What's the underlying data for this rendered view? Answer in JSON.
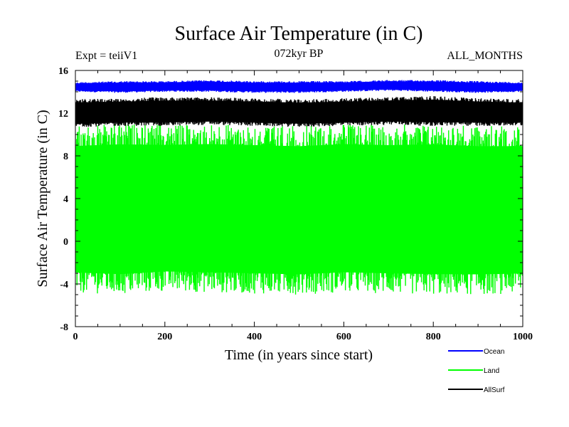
{
  "chart_data": {
    "type": "line",
    "title": "Surface Air Temperature (in C)",
    "subtitle_left": "Expt = teiiV1",
    "subtitle_center": "072kyr BP",
    "subtitle_right": "ALL_MONTHS",
    "xlabel": "Time (in years since start)",
    "ylabel": "Surface Air Temperature (in C)",
    "xlim": [
      0,
      1000
    ],
    "ylim": [
      -8,
      16
    ],
    "xticks": [
      0,
      200,
      400,
      600,
      800,
      1000
    ],
    "yticks": [
      -8,
      -4,
      0,
      4,
      8,
      12,
      16
    ],
    "grid": false,
    "legend_position": "bottom-right",
    "series": [
      {
        "name": "Ocean",
        "color": "#0000ff",
        "envelope_x": [
          0,
          100,
          200,
          300,
          400,
          500,
          600,
          700,
          800,
          900,
          1000
        ],
        "envelope_low": [
          14.0,
          13.9,
          14.0,
          14.0,
          13.9,
          13.9,
          14.0,
          14.1,
          14.0,
          13.9,
          14.0
        ],
        "envelope_high": [
          14.9,
          15.0,
          15.0,
          15.1,
          15.0,
          15.0,
          15.0,
          15.1,
          15.1,
          15.0,
          14.9
        ]
      },
      {
        "name": "Land",
        "color": "#00ff00",
        "envelope_x": [
          0,
          100,
          200,
          300,
          400,
          500,
          600,
          700,
          800,
          900,
          1000
        ],
        "envelope_low": [
          -4.8,
          -5.0,
          -4.7,
          -4.8,
          -4.9,
          -5.0,
          -4.8,
          -4.9,
          -5.0,
          -5.0,
          -4.9
        ],
        "envelope_high": [
          10.8,
          11.0,
          10.9,
          11.0,
          10.9,
          10.8,
          11.0,
          10.9,
          11.0,
          10.8,
          10.8
        ]
      },
      {
        "name": "AllSurf",
        "color": "#000000",
        "envelope_x": [
          0,
          100,
          200,
          300,
          400,
          500,
          600,
          700,
          800,
          900,
          1000
        ],
        "envelope_low": [
          10.7,
          10.8,
          10.8,
          10.9,
          10.8,
          10.7,
          10.8,
          10.9,
          10.8,
          10.8,
          10.8
        ],
        "envelope_high": [
          13.3,
          13.4,
          13.5,
          13.5,
          13.4,
          13.3,
          13.4,
          13.5,
          13.6,
          13.4,
          13.3
        ]
      }
    ]
  }
}
